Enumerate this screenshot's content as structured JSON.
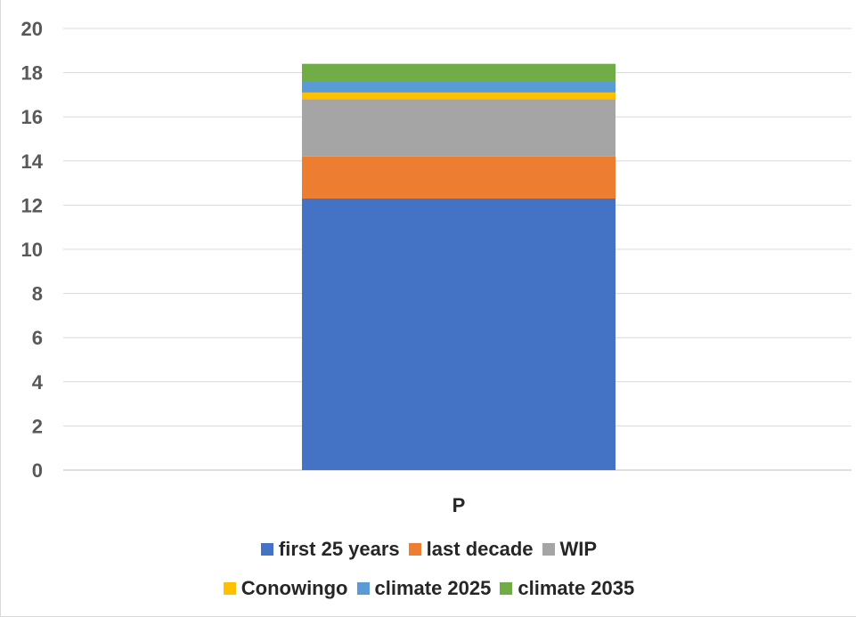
{
  "chart_data": {
    "type": "bar",
    "stacked": true,
    "categories": [
      "P"
    ],
    "series": [
      {
        "name": "first 25 years",
        "values": [
          12.3
        ],
        "color": "#4472c4"
      },
      {
        "name": "last decade",
        "values": [
          1.9
        ],
        "color": "#ed7d31"
      },
      {
        "name": "WIP",
        "values": [
          2.6
        ],
        "color": "#a5a5a5"
      },
      {
        "name": "Conowingo",
        "values": [
          0.3
        ],
        "color": "#ffc000"
      },
      {
        "name": "climate 2025",
        "values": [
          0.5
        ],
        "color": "#5b9bd5"
      },
      {
        "name": "climate 2035",
        "values": [
          0.8
        ],
        "color": "#70ad47"
      }
    ],
    "ylim": [
      0,
      20
    ],
    "yticks": [
      "0",
      "2",
      "4",
      "6",
      "8",
      "10",
      "12",
      "14",
      "16",
      "18",
      "20"
    ],
    "grid": true,
    "legend_position": "bottom"
  }
}
